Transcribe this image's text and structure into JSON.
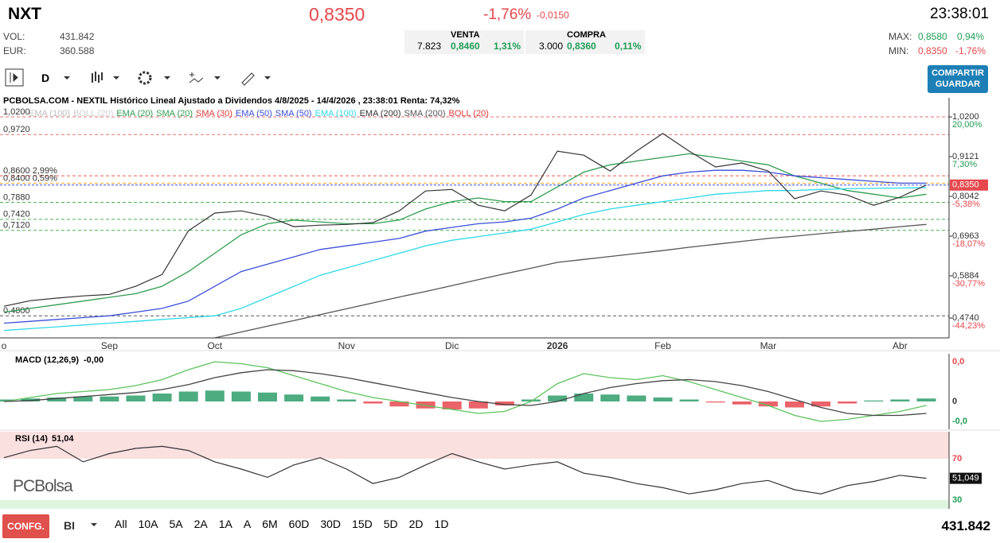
{
  "header": {
    "symbol": "NXT",
    "price": "0,8350",
    "change_pct": "-1,76%",
    "change": "-0,0150",
    "time": "23:38:01"
  },
  "stats": {
    "vol_label": "VOL:",
    "vol": "431.842",
    "eur_label": "EUR:",
    "eur": "360.588"
  },
  "venta": {
    "label": "VENTA",
    "qty": "7.823",
    "price": "0,8460",
    "pct": "1,31%"
  },
  "compra": {
    "label": "COMPRA",
    "qty": "3.000",
    "price": "0,8360",
    "pct": "0,11%"
  },
  "range": {
    "max_label": "MAX:",
    "max": "0,8580",
    "max_pct": "0,94%",
    "min_label": "MIN:",
    "min": "0,8350",
    "min_pct": "-1,76%"
  },
  "toolbar": {
    "interval": "D",
    "share": "COMPARTIR",
    "save": "GUARDAR"
  },
  "footer": {
    "config": "CONFG.",
    "mode": "BI",
    "periods": [
      "All",
      "10A",
      "5A",
      "2A",
      "1A",
      "A",
      "6M",
      "60D",
      "30D",
      "15D",
      "5D",
      "2D",
      "1D"
    ],
    "volume": "431.842"
  },
  "watermark": "PCBolsa",
  "chart_data": [
    {
      "type": "line",
      "title": "PCBOLSA.COM - NEXTIL Histórico Lineal Ajustado a Dividendos 4/8/2025 - 14/4/2026 , 23:38:01 Renta: 74,32%",
      "categories": [
        "o",
        null,
        null,
        null,
        "Sep",
        null,
        null,
        null,
        "Oct",
        null,
        null,
        null,
        null,
        "Nov",
        null,
        null,
        null,
        "Dic",
        null,
        null,
        null,
        "2026",
        null,
        null,
        null,
        "Feb",
        null,
        null,
        null,
        "Mar",
        null,
        null,
        null,
        null,
        "Abr",
        null
      ],
      "values": [
        0.506,
        0.521,
        0.528,
        0.534,
        0.538,
        0.56,
        0.592,
        0.711,
        0.759,
        0.765,
        0.75,
        0.722,
        0.726,
        0.728,
        0.733,
        0.765,
        0.819,
        0.823,
        0.78,
        0.765,
        0.808,
        0.927,
        0.916,
        0.873,
        0.927,
        0.975,
        0.927,
        0.884,
        0.895,
        0.873,
        0.798,
        0.819,
        0.808,
        0.78,
        0.802,
        0.835
      ],
      "color": "#333333",
      "last_price": {
        "value": 0.835,
        "label": "0,8350"
      },
      "series": [
        {
          "name": "EMA (100)",
          "color": "#bdbdbd"
        },
        {
          "name": "BOLL (20)",
          "color": "#cfcfcf"
        },
        {
          "name": "EMA (20)",
          "color": "#2e9e4f"
        },
        {
          "name": "SMA (20)",
          "color": "#2e9e4f",
          "values": [
            0.49,
            0.5,
            0.51,
            0.52,
            0.53,
            0.54,
            0.56,
            0.6,
            0.65,
            0.7,
            0.73,
            0.74,
            0.735,
            0.73,
            0.73,
            0.74,
            0.77,
            0.79,
            0.8,
            0.79,
            0.79,
            0.83,
            0.87,
            0.89,
            0.9,
            0.91,
            0.92,
            0.91,
            0.9,
            0.89,
            0.86,
            0.84,
            0.82,
            0.81,
            0.8,
            0.81
          ]
        },
        {
          "name": "SMA (30)",
          "color": "#e03b3b"
        },
        {
          "name": "EMA (50)",
          "color": "#3a4fd8",
          "values": [
            0.46,
            0.465,
            0.47,
            0.475,
            0.48,
            0.49,
            0.5,
            0.52,
            0.56,
            0.6,
            0.62,
            0.64,
            0.66,
            0.67,
            0.68,
            0.69,
            0.71,
            0.72,
            0.73,
            0.735,
            0.745,
            0.77,
            0.8,
            0.82,
            0.84,
            0.86,
            0.87,
            0.875,
            0.875,
            0.87,
            0.86,
            0.855,
            0.85,
            0.845,
            0.84,
            0.84
          ]
        },
        {
          "name": "SMA (50)",
          "color": "#3a4fd8"
        },
        {
          "name": "EMA (100)",
          "color": "#2fd8e8",
          "values": [
            0.44,
            0.445,
            0.45,
            0.455,
            0.46,
            0.465,
            0.47,
            0.475,
            0.48,
            0.5,
            0.53,
            0.56,
            0.59,
            0.61,
            0.63,
            0.65,
            0.67,
            0.685,
            0.695,
            0.705,
            0.715,
            0.735,
            0.755,
            0.77,
            0.78,
            0.79,
            0.8,
            0.81,
            0.815,
            0.82,
            0.82,
            0.823,
            0.825,
            0.826,
            0.827,
            0.828
          ]
        },
        {
          "name": "EMA (200)",
          "color": "#333333"
        },
        {
          "name": "SMA (200)",
          "color": "#555555",
          "values": [
            null,
            null,
            null,
            null,
            null,
            null,
            null,
            null,
            0.42,
            0.436,
            0.452,
            0.467,
            0.483,
            0.499,
            0.515,
            0.531,
            0.546,
            0.562,
            0.578,
            0.594,
            0.609,
            0.625,
            0.633,
            0.641,
            0.649,
            0.657,
            0.666,
            0.674,
            0.682,
            0.69,
            0.696,
            0.703,
            0.709,
            0.715,
            0.722,
            0.728
          ]
        },
        {
          "name": "BOLL (20)",
          "color": "#e03b3b"
        }
      ],
      "ylim": [
        0.42,
        1.046
      ],
      "yticks": [
        {
          "value": 1.02,
          "label": "1,0200"
        },
        {
          "value": 0.9121,
          "label": "0,9121"
        },
        {
          "value": 0.8042,
          "label": "0,8042"
        },
        {
          "value": 0.6963,
          "label": "0,6963"
        },
        {
          "value": 0.5884,
          "label": "0,5884"
        },
        {
          "value": 0.474,
          "label": "0,4740"
        }
      ],
      "y2lim": [
        -50.58,
        23.05
      ],
      "y2ticks": [
        {
          "value": 20,
          "label": "20,00%"
        },
        {
          "value": 7.3,
          "label": "7,30%"
        },
        {
          "value": -5.38,
          "label": "-5,38%"
        },
        {
          "value": -18.07,
          "label": "-18,07%"
        },
        {
          "value": -30.77,
          "label": "-30,77%"
        },
        {
          "value": -44.23,
          "label": "-44,23%"
        }
      ],
      "levels": [
        {
          "value": 1.02,
          "label": "1,0200",
          "color": "#e57373"
        },
        {
          "value": 0.972,
          "label": "0,9720",
          "color": "#e57373"
        },
        {
          "value": 0.86,
          "label": "0,8600 2,99%",
          "color": "#f25c54"
        },
        {
          "value": 0.84,
          "label": "0,8400 0,59%",
          "color": "#f5a623"
        },
        {
          "value": 0.788,
          "label": "0,7880",
          "color": "#4caf50"
        },
        {
          "value": 0.742,
          "label": "0,7420",
          "color": "#4caf50"
        },
        {
          "value": 0.712,
          "label": "0,7120",
          "color": "#4caf50"
        },
        {
          "value": 0.48,
          "label": "0,4800",
          "color": "#555555"
        }
      ]
    },
    {
      "type": "macd",
      "title": "MACD (12,26,9)",
      "value_text": "-0,00",
      "values": [
        0.002,
        0.003,
        0.004,
        0.005,
        0.005,
        0.006,
        0.008,
        0.01,
        0.011,
        0.01,
        0.009,
        0.007,
        0.005,
        0.002,
        -0.002,
        -0.005,
        -0.007,
        -0.008,
        -0.007,
        -0.004,
        0.002,
        0.006,
        0.008,
        0.007,
        0.006,
        0.004,
        0.002,
        -0.001,
        -0.003,
        -0.005,
        -0.006,
        -0.005,
        -0.002,
        0.001,
        0.002,
        0.003
      ],
      "lines": [
        {
          "color": "#5cc35c",
          "values": [
            0.0,
            0.004,
            0.008,
            0.01,
            0.012,
            0.016,
            0.022,
            0.032,
            0.04,
            0.038,
            0.034,
            0.026,
            0.018,
            0.01,
            0.004,
            0.0,
            -0.004,
            -0.008,
            -0.012,
            -0.01,
            0.0,
            0.018,
            0.028,
            0.024,
            0.022,
            0.026,
            0.02,
            0.012,
            0.004,
            -0.004,
            -0.014,
            -0.02,
            -0.018,
            -0.014,
            -0.01,
            -0.004
          ]
        },
        {
          "color": "#444444",
          "values": [
            0.0,
            0.001,
            0.003,
            0.005,
            0.007,
            0.009,
            0.012,
            0.017,
            0.024,
            0.029,
            0.032,
            0.031,
            0.028,
            0.024,
            0.019,
            0.014,
            0.009,
            0.004,
            0.0,
            -0.003,
            -0.004,
            0.0,
            0.008,
            0.014,
            0.018,
            0.021,
            0.022,
            0.02,
            0.016,
            0.01,
            0.002,
            -0.006,
            -0.012,
            -0.014,
            -0.014,
            -0.012
          ]
        }
      ],
      "ylim": [
        -0.028,
        0.048
      ],
      "yticks": [
        {
          "value": 0.04,
          "label": "0,0"
        },
        {
          "value": 0,
          "label": "0"
        },
        {
          "value": -0.02,
          "label": "-0,0"
        }
      ]
    },
    {
      "type": "rsi",
      "title": "RSI (14)",
      "value_text": "51,04",
      "values": [
        71,
        78,
        82,
        67,
        75,
        80,
        82,
        78,
        67,
        60,
        52,
        64,
        71,
        60,
        46,
        52,
        64,
        75,
        67,
        60,
        64,
        67,
        56,
        52,
        46,
        42,
        36,
        40,
        46,
        49,
        40,
        36,
        44,
        48,
        54,
        51.049
      ],
      "last_label": "51,049",
      "color": "#333333",
      "ylim": [
        21.5,
        96.2
      ],
      "yticks": [
        70,
        30
      ]
    }
  ]
}
